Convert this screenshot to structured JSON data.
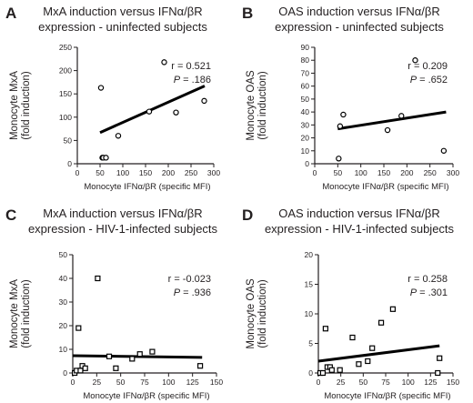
{
  "chart_data": [
    {
      "type": "scatter",
      "panel_label": "A",
      "title_lines": [
        "MxA induction versus IFNα/βR",
        "expression - uninfected subjects"
      ],
      "xlabel": "Monocyte IFNα/βR (specific MFI)",
      "ylabel_lines": [
        "Monocyte MxA",
        "(fold induction)"
      ],
      "xlim": [
        0,
        300
      ],
      "ylim": [
        0,
        250
      ],
      "xticks": [
        0,
        50,
        100,
        150,
        200,
        250,
        300
      ],
      "yticks": [
        0,
        50,
        100,
        150,
        200,
        250
      ],
      "stats": {
        "r": "r = 0.521",
        "p_label": "P",
        "p_value": " = .186"
      },
      "marker": "circle",
      "points": {
        "x": [
          52,
          55,
          57,
          63,
          90,
          158,
          191,
          217,
          279
        ],
        "y": [
          163,
          13,
          13,
          13,
          60,
          112,
          218,
          110,
          135
        ]
      },
      "fit": {
        "x": [
          50,
          280
        ],
        "y": [
          67,
          167
        ]
      }
    },
    {
      "type": "scatter",
      "panel_label": "B",
      "title_lines": [
        "OAS induction versus IFNα/βR",
        "expression - uninfected subjects"
      ],
      "xlabel": "Monocyte IFNα/βR (specific MFI)",
      "ylabel_lines": [
        "Monocyte OAS",
        "(fold induction)"
      ],
      "xlim": [
        0,
        300
      ],
      "ylim": [
        0,
        90
      ],
      "xticks": [
        0,
        50,
        100,
        150,
        200,
        250,
        300
      ],
      "yticks": [
        0,
        10,
        20,
        30,
        40,
        50,
        60,
        70,
        80,
        90
      ],
      "stats": {
        "r": "r = 0.209",
        "p_label": "P",
        "p_value": " = .652"
      },
      "marker": "circle",
      "points": {
        "x": [
          52,
          55,
          62,
          158,
          188,
          218,
          280
        ],
        "y": [
          4,
          29,
          38,
          26,
          37,
          80,
          10
        ]
      },
      "fit": {
        "x": [
          50,
          285
        ],
        "y": [
          27,
          40
        ]
      }
    },
    {
      "type": "scatter",
      "panel_label": "C",
      "title_lines": [
        "MxA induction versus IFNα/βR",
        "expression - HIV-1-infected subjects"
      ],
      "xlabel": "Monocyte IFNα/βR (specific MFI)",
      "ylabel_lines": [
        "Monocyte MxA",
        "(fold induction)"
      ],
      "xlim": [
        0,
        150
      ],
      "ylim": [
        0,
        50
      ],
      "xticks": [
        0,
        25,
        50,
        75,
        100,
        125,
        150
      ],
      "yticks": [
        0,
        10,
        20,
        30,
        40,
        50
      ],
      "stats": {
        "r": "r = -0.023",
        "p_label": "P",
        "p_value": " = .936"
      },
      "marker": "square",
      "points": {
        "x": [
          2,
          4,
          6,
          8,
          10,
          13,
          26,
          38,
          45,
          62,
          70,
          83,
          133
        ],
        "y": [
          0,
          1,
          19,
          1,
          3,
          2,
          40,
          7,
          2,
          6,
          8,
          9,
          3
        ]
      },
      "fit": {
        "x": [
          0,
          135
        ],
        "y": [
          7.3,
          6.6
        ]
      }
    },
    {
      "type": "scatter",
      "panel_label": "D",
      "title_lines": [
        "OAS induction versus IFNα/βR",
        "expression - HIV-1-infected subjects"
      ],
      "xlabel": "Monocyte IFNα/βR (specific MFI)",
      "ylabel_lines": [
        "Monocyte OAS",
        "(fold induction)"
      ],
      "xlim": [
        0,
        150
      ],
      "ylim": [
        0,
        20
      ],
      "xticks": [
        0,
        25,
        50,
        75,
        100,
        125,
        150
      ],
      "yticks": [
        0,
        5,
        10,
        15,
        20
      ],
      "stats": {
        "r": "r = 0.258",
        "p_label": "P",
        "p_value": " = .301"
      },
      "marker": "square",
      "points": {
        "x": [
          2,
          5,
          8,
          10,
          13,
          15,
          24,
          38,
          45,
          55,
          60,
          70,
          83,
          133,
          135
        ],
        "y": [
          0,
          0,
          7.5,
          1,
          1,
          0.5,
          0.5,
          6,
          1.5,
          2,
          4.2,
          8.5,
          10.8,
          0,
          2.5
        ]
      },
      "fit": {
        "x": [
          0,
          135
        ],
        "y": [
          2,
          4.6
        ]
      }
    }
  ]
}
